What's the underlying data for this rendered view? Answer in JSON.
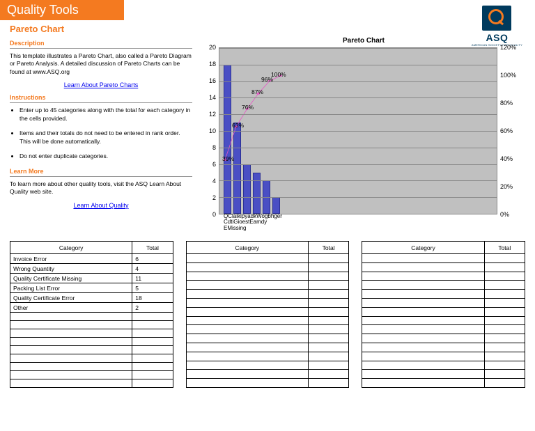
{
  "header": {
    "title": "Quality Tools"
  },
  "logo": {
    "text": "ASQ",
    "sub": "AMERICAN SOCIETY FOR QUALITY"
  },
  "page": {
    "subtitle": "Pareto Chart",
    "sections": {
      "description": {
        "heading": "Description",
        "text": "This template illustrates a Pareto Chart, also called a Pareto Diagram or Pareto Analysis.  A detailed discussion of Pareto Charts can be found at www.ASQ.org",
        "link": "Learn About Pareto Charts"
      },
      "instructions": {
        "heading": "Instructions",
        "items": [
          "Enter up to 45 categories along with the total for each category in the cells provided.",
          "Items and their totals do not need to be entered in rank order.  This will be done automatically.",
          "Do not enter duplicate categories."
        ]
      },
      "learn_more": {
        "heading": "Learn More",
        "text": "To learn more about other quality tools, visit the ASQ Learn About Quality web site.",
        "link": "Learn About Quality"
      }
    }
  },
  "chart": {
    "title": "Pareto Chart",
    "type": "pareto",
    "plot_background": "#c0c0c0",
    "grid_color": "#888888",
    "bar_color": "#4a4fc4",
    "bar_border": "#2a2f94",
    "line_color": "#e754c5",
    "y_left": {
      "min": 0,
      "max": 20,
      "step": 2
    },
    "y_right": {
      "min": 0,
      "max": 120,
      "step": 20,
      "suffix": "%"
    },
    "bars": [
      {
        "label": "Quality Certificate Error",
        "value": 18
      },
      {
        "label": "Quality Certificate Missing",
        "value": 11
      },
      {
        "label": "Invoice Error",
        "value": 6
      },
      {
        "label": "Packing List Error",
        "value": 5
      },
      {
        "label": "Wrong Quantity",
        "value": 4
      },
      {
        "label": "Other",
        "value": 2
      }
    ],
    "cumulative_pct": [
      39,
      63,
      76,
      87,
      96,
      100
    ],
    "x_label_lines": [
      "QClaikipyadkWogbhger",
      "CdtiGioestEamdy",
      "EMissing"
    ]
  },
  "tables": {
    "headers": {
      "category": "Category",
      "total": "Total"
    },
    "empty_rows_each": 15,
    "data": [
      {
        "category": "Invoice Error",
        "total": "6"
      },
      {
        "category": "Wrong Quantity",
        "total": "4"
      },
      {
        "category": "Quality Certificate Missing",
        "total": "11"
      },
      {
        "category": "Packing List Error",
        "total": "5"
      },
      {
        "category": "Quality Certificate Error",
        "total": "18"
      },
      {
        "category": "Other",
        "total": "2"
      }
    ]
  }
}
